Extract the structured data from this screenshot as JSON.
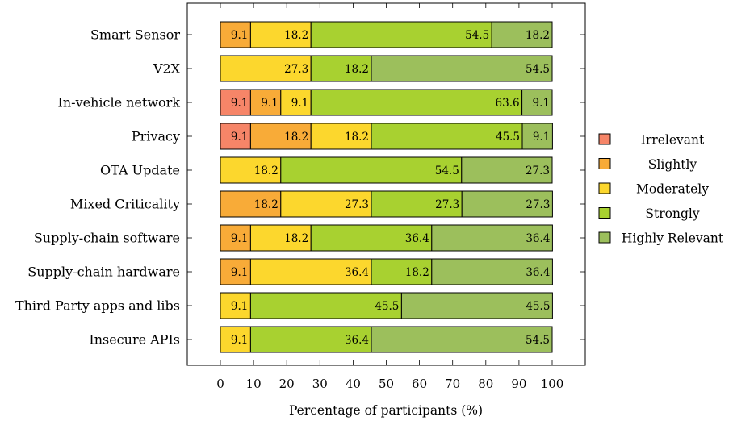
{
  "chart_data": {
    "type": "bar",
    "orientation": "horizontal",
    "stacked": true,
    "title": "",
    "xlabel": "Percentage of participants (%)",
    "ylabel": "",
    "xlim": [
      -10,
      110
    ],
    "xticks": [
      0,
      10,
      20,
      30,
      40,
      50,
      60,
      70,
      80,
      90,
      100
    ],
    "grid": false,
    "legend_position": "right",
    "categories": [
      "Smart Sensor",
      "V2X",
      "In-vehicle network",
      "Privacy",
      "OTA Update",
      "Mixed Criticality",
      "Supply-chain software",
      "Supply-chain hardware",
      "Third Party apps and libs",
      "Insecure APIs"
    ],
    "series": [
      {
        "name": "Irrelevant",
        "color": "#f68568",
        "values": [
          0,
          0,
          9.1,
          9.1,
          0,
          0,
          0,
          0,
          0,
          0
        ]
      },
      {
        "name": "Slightly",
        "color": "#f8ab38",
        "values": [
          9.1,
          0,
          9.1,
          18.2,
          0,
          18.2,
          9.1,
          9.1,
          0,
          0
        ]
      },
      {
        "name": "Moderately",
        "color": "#fcd72d",
        "values": [
          18.2,
          27.3,
          9.1,
          18.2,
          18.2,
          27.3,
          18.2,
          36.4,
          9.1,
          9.1
        ]
      },
      {
        "name": "Strongly",
        "color": "#a8d130",
        "values": [
          54.5,
          18.2,
          63.6,
          45.5,
          54.5,
          27.3,
          36.4,
          18.2,
          45.5,
          36.4
        ]
      },
      {
        "name": "Highly Relevant",
        "color": "#9cbf5c",
        "values": [
          18.2,
          54.5,
          9.1,
          9.1,
          27.3,
          27.3,
          36.4,
          36.4,
          45.5,
          54.5
        ]
      }
    ]
  }
}
